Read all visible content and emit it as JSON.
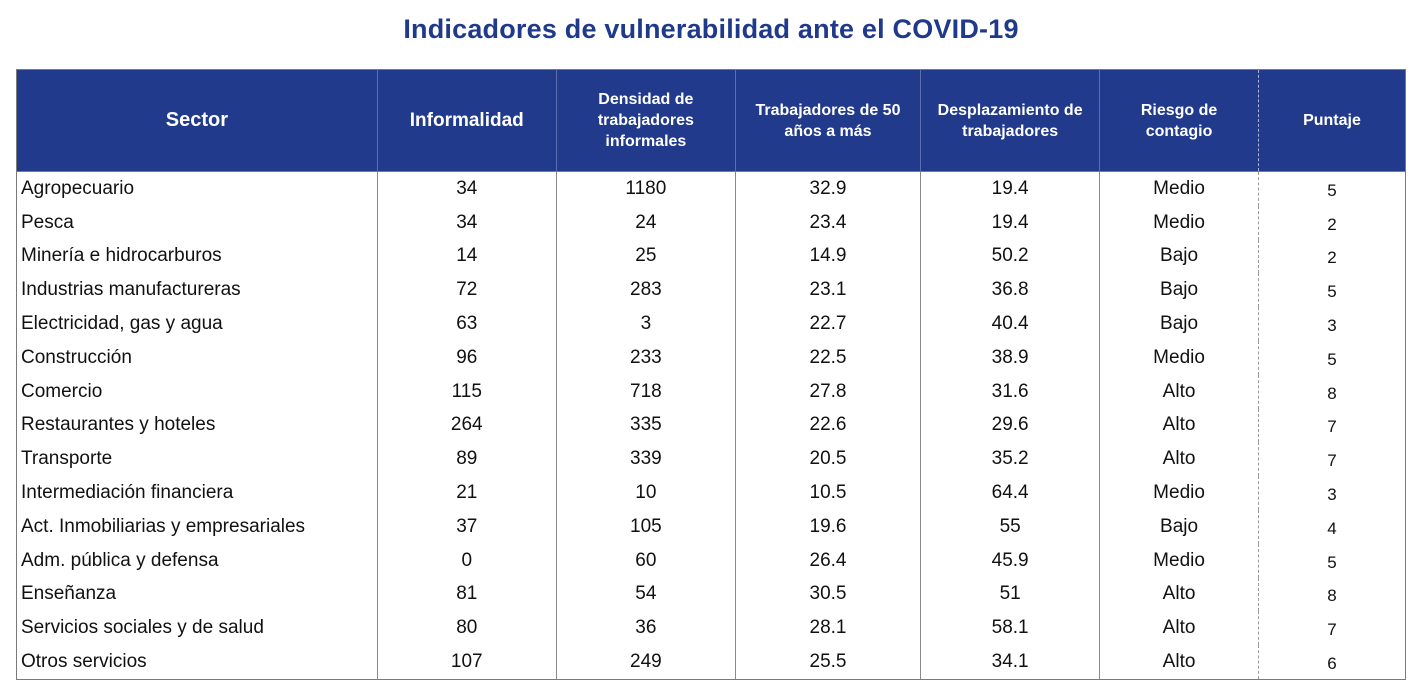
{
  "title": "Indicadores de vulnerabilidad ante el COVID-19",
  "headers": {
    "sector": "Sector",
    "informalidad": "Informalidad",
    "densidad": [
      "Densidad de",
      "trabajadores",
      "informales"
    ],
    "trabajadores50": [
      "Trabajadores de 50",
      "años a más"
    ],
    "desplazamiento": [
      "Desplazamiento de",
      "trabajadores"
    ],
    "riesgo": [
      "Riesgo de",
      "contagio"
    ],
    "puntaje": "Puntaje"
  },
  "rows": [
    {
      "sector": "Agropecuario",
      "informalidad": "34",
      "densidad": "1180",
      "trab50": "32.9",
      "desplazamiento": "19.4",
      "riesgo": "Medio",
      "puntaje": "5"
    },
    {
      "sector": "Pesca",
      "informalidad": "34",
      "densidad": "24",
      "trab50": "23.4",
      "desplazamiento": "19.4",
      "riesgo": "Medio",
      "puntaje": "2"
    },
    {
      "sector": "Minería e hidrocarburos",
      "informalidad": "14",
      "densidad": "25",
      "trab50": "14.9",
      "desplazamiento": "50.2",
      "riesgo": "Bajo",
      "puntaje": "2"
    },
    {
      "sector": "Industrias manufactureras",
      "informalidad": "72",
      "densidad": "283",
      "trab50": "23.1",
      "desplazamiento": "36.8",
      "riesgo": "Bajo",
      "puntaje": "5"
    },
    {
      "sector": "Electricidad, gas y agua",
      "informalidad": "63",
      "densidad": "3",
      "trab50": "22.7",
      "desplazamiento": "40.4",
      "riesgo": "Bajo",
      "puntaje": "3"
    },
    {
      "sector": "Construcción",
      "informalidad": "96",
      "densidad": "233",
      "trab50": "22.5",
      "desplazamiento": "38.9",
      "riesgo": "Medio",
      "puntaje": "5"
    },
    {
      "sector": "Comercio",
      "informalidad": "115",
      "densidad": "718",
      "trab50": "27.8",
      "desplazamiento": "31.6",
      "riesgo": "Alto",
      "puntaje": "8"
    },
    {
      "sector": "Restaurantes y hoteles",
      "informalidad": "264",
      "densidad": "335",
      "trab50": "22.6",
      "desplazamiento": "29.6",
      "riesgo": "Alto",
      "puntaje": "7"
    },
    {
      "sector": "Transporte",
      "informalidad": "89",
      "densidad": "339",
      "trab50": "20.5",
      "desplazamiento": "35.2",
      "riesgo": "Alto",
      "puntaje": "7"
    },
    {
      "sector": "Intermediación financiera",
      "informalidad": "21",
      "densidad": "10",
      "trab50": "10.5",
      "desplazamiento": "64.4",
      "riesgo": "Medio",
      "puntaje": "3"
    },
    {
      "sector": "Act. Inmobiliarias y empresariales",
      "informalidad": "37",
      "densidad": "105",
      "trab50": "19.6",
      "desplazamiento": "55",
      "riesgo": "Bajo",
      "puntaje": "4"
    },
    {
      "sector": "Adm. pública y defensa",
      "informalidad": "0",
      "densidad": "60",
      "trab50": "26.4",
      "desplazamiento": "45.9",
      "riesgo": "Medio",
      "puntaje": "5"
    },
    {
      "sector": "Enseñanza",
      "informalidad": "81",
      "densidad": "54",
      "trab50": "30.5",
      "desplazamiento": "51",
      "riesgo": "Alto",
      "puntaje": "8"
    },
    {
      "sector": "Servicios sociales y de salud",
      "informalidad": "80",
      "densidad": "36",
      "trab50": "28.1",
      "desplazamiento": "58.1",
      "riesgo": "Alto",
      "puntaje": "7"
    },
    {
      "sector": "Otros servicios",
      "informalidad": "107",
      "densidad": "249",
      "trab50": "25.5",
      "desplazamiento": "34.1",
      "riesgo": "Alto",
      "puntaje": "6"
    }
  ],
  "colors": {
    "header_bg": "#213a8c",
    "title": "#1f3a8a",
    "header_text": "#ffffff"
  }
}
